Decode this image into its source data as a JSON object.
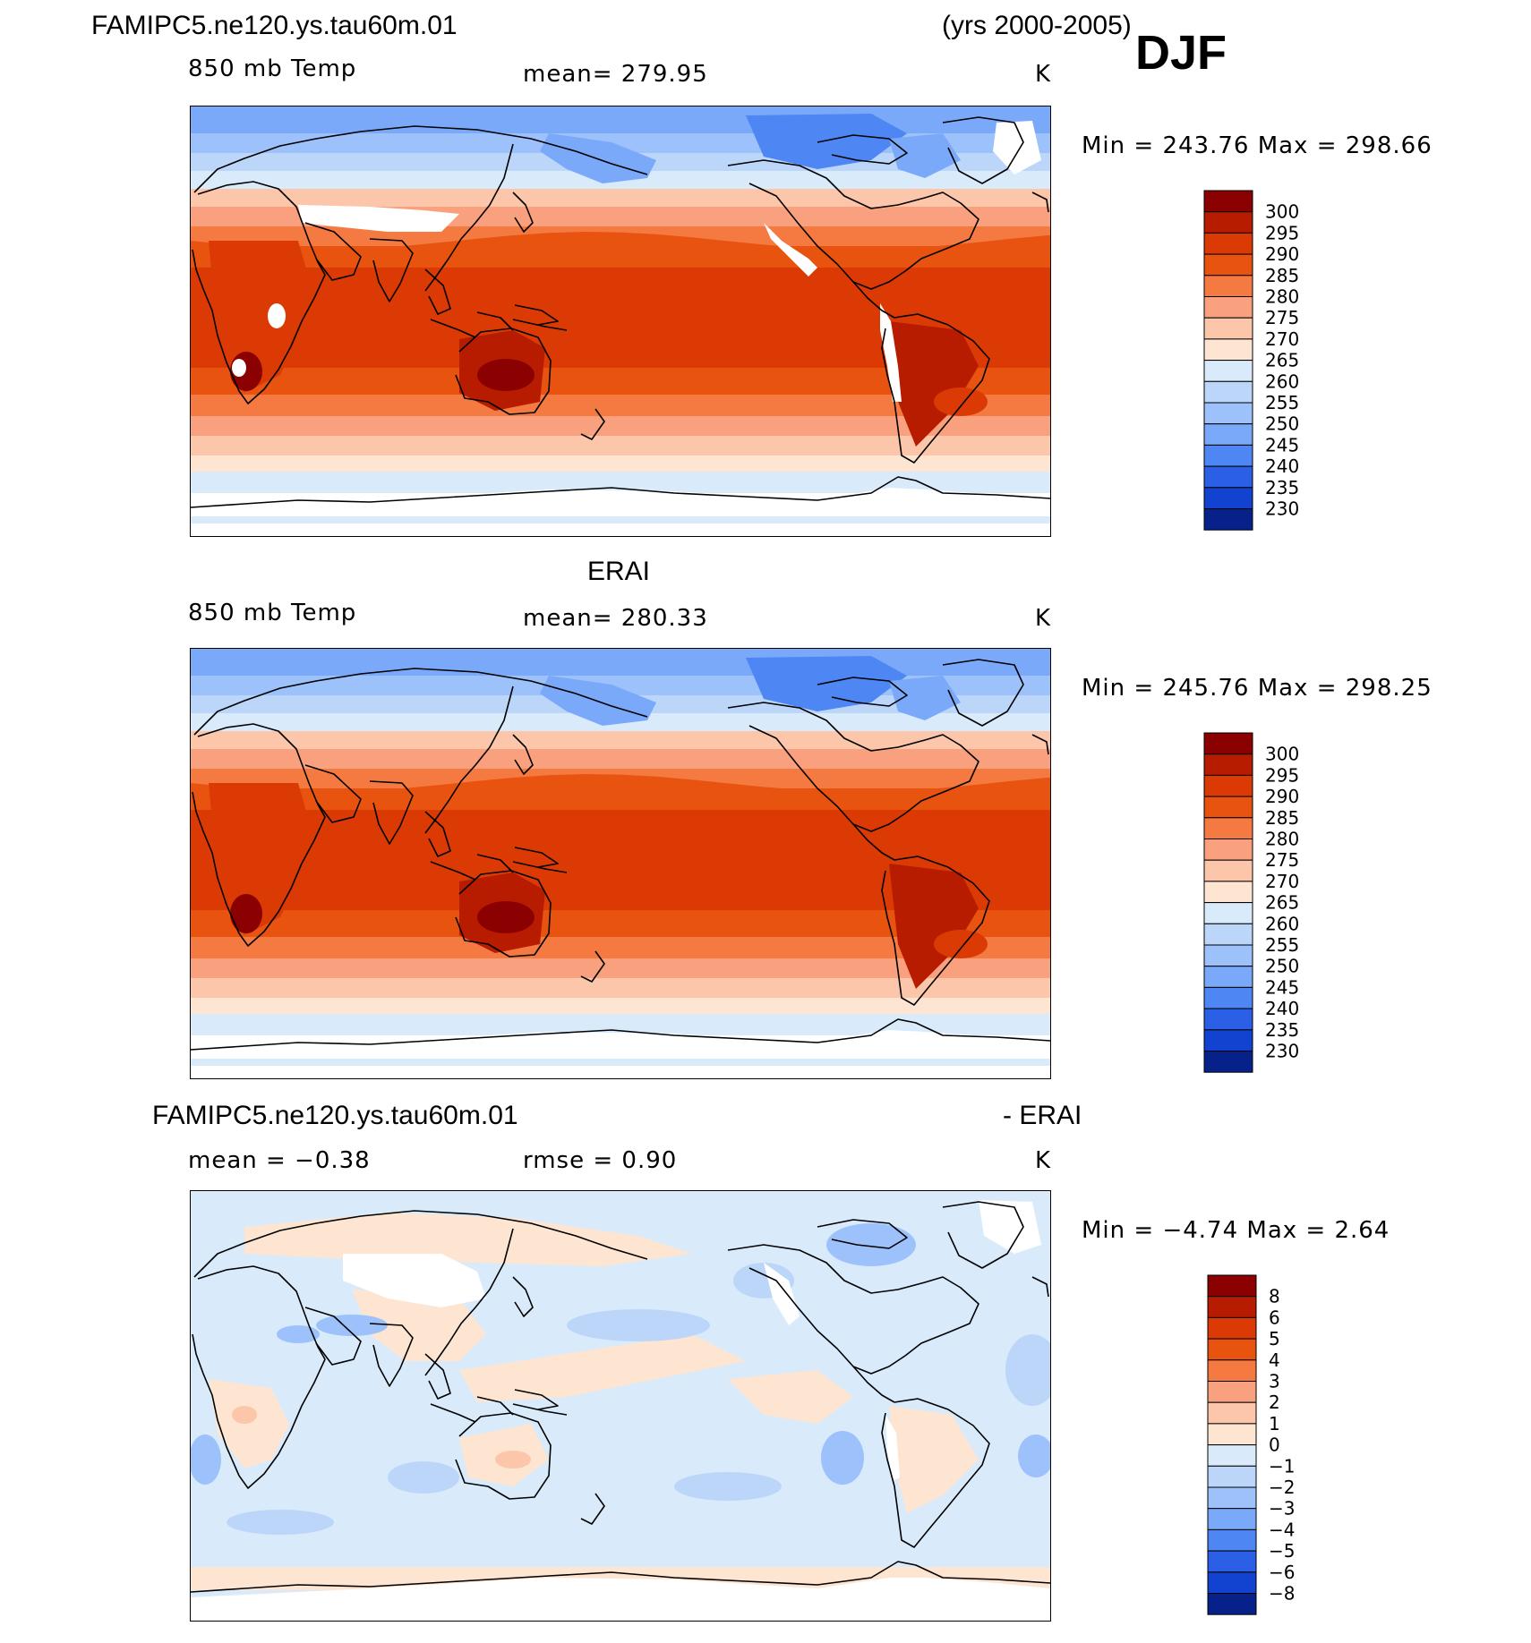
{
  "figure": {
    "case_name": "FAMIPC5.ne120.ys.tau60m.01",
    "years": "(yrs 2000-2005)",
    "season": "DJF"
  },
  "panels": [
    {
      "id": "model",
      "title_left": "",
      "title_right": "",
      "field_label": "850 mb Temp",
      "stat_text": "mean=  279.95",
      "units": "K",
      "minmax_text": "Min  =  243.76  Max  =  298.66",
      "colorbar": {
        "levels": [
          "300",
          "295",
          "290",
          "285",
          "280",
          "275",
          "270",
          "265",
          "260",
          "255",
          "250",
          "245",
          "240",
          "235",
          "230"
        ],
        "colors": [
          "#8b0000",
          "#b71c00",
          "#dc3a05",
          "#e8540f",
          "#f47a42",
          "#f9a07e",
          "#fcc6aa",
          "#fde5d2",
          "#d9ebfb",
          "#bcd6fa",
          "#9cc1fb",
          "#7ba9f9",
          "#4e86f4",
          "#2a5fe6",
          "#1243d0",
          "#06228a"
        ]
      }
    },
    {
      "id": "obs",
      "title_left": "",
      "title_right": "ERAI",
      "field_label": "850 mb Temp",
      "stat_text": "mean=  280.33",
      "units": "K",
      "minmax_text": "Min  =  245.76  Max  =  298.25",
      "colorbar": {
        "levels": [
          "300",
          "295",
          "290",
          "285",
          "280",
          "275",
          "270",
          "265",
          "260",
          "255",
          "250",
          "245",
          "240",
          "235",
          "230"
        ],
        "colors": [
          "#8b0000",
          "#b71c00",
          "#dc3a05",
          "#e8540f",
          "#f47a42",
          "#f9a07e",
          "#fcc6aa",
          "#fde5d2",
          "#d9ebfb",
          "#bcd6fa",
          "#9cc1fb",
          "#7ba9f9",
          "#4e86f4",
          "#2a5fe6",
          "#1243d0",
          "#06228a"
        ]
      }
    },
    {
      "id": "diff",
      "title_left": "FAMIPC5.ne120.ys.tau60m.01",
      "title_right": "- ERAI",
      "field_label": "mean  =   −0.38",
      "stat_text": "rmse  =     0.90",
      "units": "K",
      "minmax_text": "Min  =    −4.74  Max  =      2.64",
      "colorbar": {
        "levels": [
          "8",
          "6",
          "5",
          "4",
          "3",
          "2",
          "1",
          "0",
          "−1",
          "−2",
          "−3",
          "−4",
          "−5",
          "−6",
          "−8"
        ],
        "colors": [
          "#8b0000",
          "#b71c00",
          "#dc3a05",
          "#e8540f",
          "#f47a42",
          "#f9a07e",
          "#fcc6aa",
          "#fde5d2",
          "#d9ebfb",
          "#bcd6fa",
          "#9cc1fb",
          "#7ba9f9",
          "#4e86f4",
          "#2a5fe6",
          "#1243d0",
          "#06228a"
        ]
      }
    }
  ]
}
